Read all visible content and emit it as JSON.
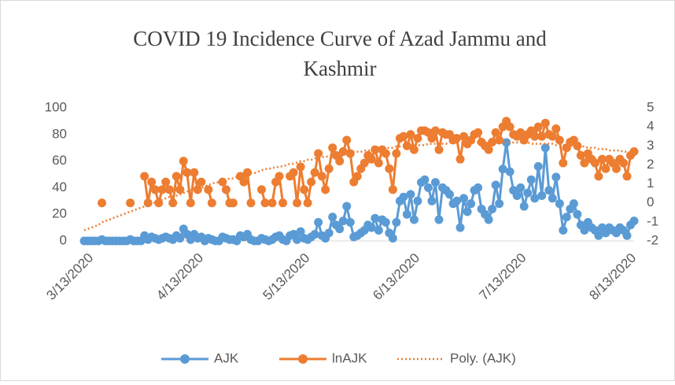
{
  "chart_data": {
    "type": "line",
    "title": [
      "COVID 19 Incidence Curve of Azad Jammu and",
      "Kashmir"
    ],
    "categories": [
      "3/13/2020",
      null,
      null,
      null,
      null,
      null,
      null,
      null,
      null,
      null,
      null,
      null,
      null,
      null,
      null,
      null,
      null,
      null,
      null,
      null,
      null,
      null,
      null,
      null,
      null,
      null,
      null,
      null,
      null,
      null,
      null,
      "4/13/2020",
      null,
      null,
      null,
      null,
      null,
      null,
      null,
      null,
      null,
      null,
      null,
      null,
      null,
      null,
      null,
      null,
      null,
      null,
      null,
      null,
      null,
      null,
      null,
      null,
      null,
      null,
      null,
      null,
      null,
      "5/13/2020",
      null,
      null,
      null,
      null,
      null,
      null,
      null,
      null,
      null,
      null,
      null,
      null,
      null,
      null,
      null,
      null,
      null,
      null,
      null,
      null,
      null,
      null,
      null,
      null,
      null,
      null,
      null,
      null,
      null,
      null,
      "6/13/2020",
      null,
      null,
      null,
      null,
      null,
      null,
      null,
      null,
      null,
      null,
      null,
      null,
      null,
      null,
      null,
      null,
      null,
      null,
      null,
      null,
      null,
      null,
      null,
      null,
      null,
      null,
      null,
      null,
      null,
      "7/13/2020",
      null,
      null,
      null,
      null,
      null,
      null,
      null,
      null,
      null,
      null,
      null,
      null,
      null,
      null,
      null,
      null,
      null,
      null,
      null,
      null,
      null,
      null,
      null,
      null,
      null,
      null,
      null,
      null,
      null,
      null,
      "8/13/2020",
      null,
      null
    ],
    "series": [
      {
        "name": "AJK",
        "color": "#5b9bd5",
        "marker": true,
        "values": [
          0,
          0,
          0,
          0,
          0,
          1,
          0,
          0,
          0,
          0,
          0,
          0,
          0,
          1,
          0,
          0,
          0,
          4,
          1,
          3,
          2,
          1,
          2,
          3,
          2,
          1,
          4,
          2,
          9,
          5,
          1,
          5,
          2,
          3,
          0,
          2,
          1,
          0,
          0,
          3,
          2,
          1,
          1,
          0,
          4,
          3,
          5,
          1,
          0,
          0,
          2,
          1,
          0,
          1,
          3,
          4,
          1,
          0,
          4,
          5,
          1,
          7,
          2,
          1,
          3,
          5,
          14,
          4,
          2,
          6,
          18,
          12,
          9,
          15,
          26,
          14,
          3,
          4,
          6,
          8,
          12,
          10,
          17,
          8,
          16,
          14,
          6,
          2,
          14,
          30,
          33,
          20,
          35,
          16,
          30,
          44,
          46,
          40,
          30,
          44,
          16,
          40,
          38,
          35,
          28,
          30,
          10,
          32,
          22,
          28,
          38,
          40,
          24,
          20,
          16,
          24,
          42,
          28,
          54,
          74,
          52,
          38,
          34,
          40,
          26,
          36,
          46,
          32,
          56,
          34,
          70,
          38,
          32,
          48,
          28,
          8,
          18,
          24,
          28,
          20,
          12,
          8,
          14,
          10,
          8,
          4,
          10,
          6,
          10,
          8,
          6,
          10,
          8,
          4,
          12,
          15
        ]
      },
      {
        "name": "lnAJK",
        "color": "#ed7d31",
        "marker": true,
        "axis": "y2",
        "values": [
          null,
          null,
          null,
          null,
          null,
          0,
          null,
          null,
          null,
          null,
          null,
          null,
          null,
          0,
          null,
          null,
          null,
          1.4,
          0,
          1.1,
          0.7,
          0,
          0.7,
          1.1,
          0.7,
          0,
          1.4,
          0.7,
          2.2,
          1.6,
          0,
          1.6,
          0.7,
          1.1,
          null,
          0.7,
          0,
          null,
          null,
          1.1,
          0.7,
          0,
          0,
          null,
          1.4,
          1.1,
          1.6,
          0,
          null,
          null,
          0.7,
          0,
          null,
          0,
          1.1,
          1.4,
          0,
          null,
          1.4,
          1.6,
          0,
          1.9,
          0.7,
          0,
          1.1,
          1.6,
          2.6,
          1.4,
          0.7,
          1.8,
          2.9,
          2.5,
          2.2,
          2.7,
          3.3,
          2.6,
          1.1,
          1.4,
          1.8,
          2.1,
          2.5,
          2.3,
          2.8,
          2.1,
          2.8,
          2.6,
          1.8,
          0.7,
          2.6,
          3.4,
          3.5,
          3.0,
          3.6,
          2.8,
          3.4,
          3.8,
          3.8,
          3.7,
          3.4,
          3.8,
          2.8,
          3.7,
          3.6,
          3.6,
          3.3,
          3.4,
          2.3,
          3.5,
          3.1,
          3.3,
          3.6,
          3.7,
          3.2,
          3.0,
          2.8,
          3.2,
          3.7,
          3.3,
          4.0,
          4.3,
          4.0,
          3.6,
          3.5,
          3.7,
          3.3,
          3.6,
          3.8,
          3.5,
          4.0,
          3.5,
          4.2,
          3.6,
          3.5,
          3.9,
          3.3,
          2.1,
          2.9,
          3.2,
          3.3,
          3.0,
          2.5,
          2.1,
          2.6,
          2.3,
          2.1,
          1.4,
          2.3,
          1.8,
          2.3,
          2.1,
          1.8,
          2.3,
          2.1,
          1.4,
          2.5,
          2.7
        ]
      },
      {
        "name": "Poly. (AJK)",
        "color": "#ed7d31",
        "dotted": true,
        "values": [
          8,
          9,
          10,
          11,
          12,
          14,
          15,
          16,
          17,
          18,
          19,
          20,
          21,
          22,
          23,
          24,
          25,
          26,
          27,
          28,
          29,
          30,
          31,
          32,
          33,
          33,
          34,
          35,
          36,
          37,
          38,
          39,
          40,
          40,
          41,
          42,
          43,
          44,
          44,
          45,
          46,
          47,
          47,
          48,
          49,
          49,
          50,
          51,
          51,
          52,
          53,
          54,
          54,
          55,
          55,
          56,
          56,
          57,
          58,
          58,
          59,
          60,
          60,
          61,
          61,
          62,
          62,
          63,
          63,
          64,
          64,
          64,
          65,
          65,
          66,
          66,
          67,
          67,
          67,
          68,
          68,
          68,
          69,
          69,
          69,
          70,
          70,
          70,
          71,
          71,
          71,
          71,
          72,
          72,
          72,
          72,
          72,
          73,
          73,
          73,
          73,
          73,
          73,
          74,
          74,
          74,
          74,
          74,
          74,
          74,
          74,
          74,
          74,
          74,
          74,
          74,
          74,
          74,
          74,
          74,
          74,
          74,
          74,
          74,
          74,
          74,
          73,
          73,
          73,
          73,
          73,
          73,
          73,
          72,
          72,
          72,
          72,
          72,
          71,
          71,
          71,
          71,
          70,
          70,
          70,
          69,
          69,
          69,
          68,
          68,
          68,
          68,
          67,
          67,
          66,
          66
        ]
      }
    ],
    "ylim": [
      0,
      100
    ],
    "yticks": [
      0,
      20,
      40,
      60,
      80,
      100
    ],
    "y2lim": [
      -2,
      5
    ],
    "y2ticks": [
      -2,
      -1,
      0,
      1,
      2,
      3,
      4,
      5
    ],
    "grid": false,
    "legend": "bottom"
  }
}
